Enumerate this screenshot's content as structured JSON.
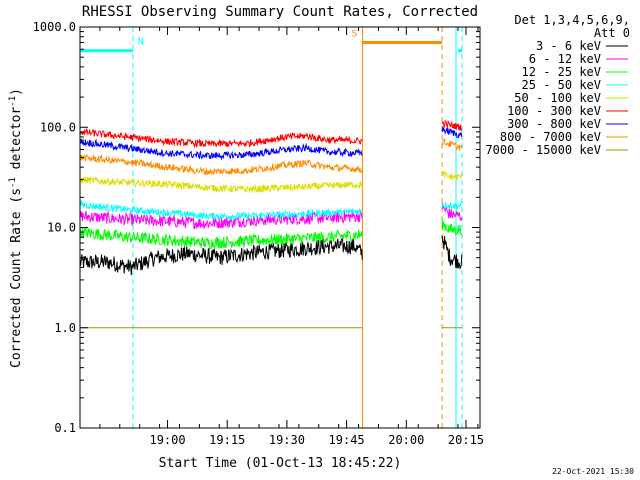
{
  "chart_data": {
    "type": "line",
    "title": "RHESSI Observing Summary Count Rates, Corrected",
    "xlabel": "Start Time (01-Oct-13 18:45:22)",
    "ylabel_main": "Corrected Count Rate (s",
    "ylabel_sup1": "-1",
    "ylabel_mid": " detector",
    "ylabel_sup2": "-1",
    "ylabel_end": ")",
    "y_scale": "log",
    "ylim": [
      0.1,
      1000
    ],
    "y_ticks": [
      "0.1",
      "1.0",
      "10.0",
      "100.0",
      "1000.0"
    ],
    "x_range_min": [
      -7,
      89
    ],
    "x_ticks": [
      {
        "label": "19:00",
        "min": 15
      },
      {
        "label": "19:15",
        "min": 30
      },
      {
        "label": "19:30",
        "min": 45
      },
      {
        "label": "19:45",
        "min": 60
      },
      {
        "label": "20:00",
        "min": 75
      },
      {
        "label": "20:15",
        "min": 90
      }
    ],
    "legend": {
      "header1": "Det 1,3,4,5,6,9,",
      "header2": "Att 0",
      "placement": "right"
    },
    "flags": [
      {
        "label": "N",
        "color": "#00ffff",
        "min_range": [
          -7,
          6.3
        ],
        "level": 580
      },
      {
        "label": "S",
        "color": "#ff8c00",
        "min_range": [
          64,
          84
        ],
        "level": 700
      },
      {
        "label": "",
        "color": "#00ffff",
        "min_range": [
          88,
          89
        ],
        "level": 580
      }
    ],
    "vlines": [
      {
        "min": -7,
        "color": "#00ffff",
        "style": "solid"
      },
      {
        "min": 6.3,
        "color": "#00ffff",
        "style": "dashed"
      },
      {
        "min": 64,
        "color": "#ff8c00",
        "style": "solid"
      },
      {
        "min": 84,
        "color": "#ff8c00",
        "style": "dashed"
      },
      {
        "min": 87.5,
        "color": "#00ffff",
        "style": "solid"
      },
      {
        "min": 89,
        "color": "#00ffff",
        "style": "dashed"
      }
    ],
    "segments": [
      [
        -7,
        64
      ],
      [
        84,
        89
      ]
    ],
    "series": [
      {
        "name": "3 - 6 keV",
        "color": "#000000",
        "pts1": [
          [
            -7,
            4.5
          ],
          [
            0,
            4.5
          ],
          [
            6,
            4.0
          ],
          [
            12,
            5.0
          ],
          [
            20,
            5.5
          ],
          [
            28,
            5.0
          ],
          [
            35,
            5.5
          ],
          [
            45,
            6.0
          ],
          [
            55,
            6.5
          ],
          [
            62,
            6.5
          ],
          [
            64,
            5.5
          ]
        ],
        "pts2": [
          [
            84,
            8.0
          ],
          [
            86,
            5.0
          ],
          [
            89,
            4.5
          ]
        ]
      },
      {
        "name": "6 - 12 keV",
        "color": "#ff00ff",
        "pts1": [
          [
            -7,
            13
          ],
          [
            5,
            12
          ],
          [
            15,
            11.5
          ],
          [
            25,
            11
          ],
          [
            40,
            12
          ],
          [
            55,
            12.5
          ],
          [
            64,
            13
          ]
        ],
        "pts2": [
          [
            84,
            16
          ],
          [
            86,
            13.5
          ],
          [
            89,
            13
          ]
        ]
      },
      {
        "name": "12 - 25 keV",
        "color": "#00ff00",
        "pts1": [
          [
            -7,
            9
          ],
          [
            5,
            8
          ],
          [
            15,
            7.5
          ],
          [
            25,
            7
          ],
          [
            40,
            7.5
          ],
          [
            55,
            8
          ],
          [
            64,
            8.5
          ]
        ],
        "pts2": [
          [
            84,
            11
          ],
          [
            86,
            9.5
          ],
          [
            89,
            9.5
          ]
        ]
      },
      {
        "name": "25 - 50 keV",
        "color": "#00ffff",
        "pts1": [
          [
            -7,
            17
          ],
          [
            5,
            15
          ],
          [
            15,
            14
          ],
          [
            25,
            13
          ],
          [
            35,
            13
          ],
          [
            45,
            13.5
          ],
          [
            55,
            14
          ],
          [
            64,
            14.5
          ]
        ],
        "pts2": [
          [
            84,
            17
          ],
          [
            86,
            16.5
          ],
          [
            89,
            16.5
          ]
        ]
      },
      {
        "name": "50 - 100 keV",
        "color": "#dddd00",
        "pts1": [
          [
            -7,
            30
          ],
          [
            5,
            28
          ],
          [
            15,
            27
          ],
          [
            25,
            25
          ],
          [
            35,
            24
          ],
          [
            45,
            25
          ],
          [
            55,
            26
          ],
          [
            64,
            27
          ]
        ],
        "pts2": [
          [
            84,
            34
          ],
          [
            86,
            32
          ],
          [
            89,
            32
          ]
        ]
      },
      {
        "name": "100 - 300 keV",
        "color": "#ff0000",
        "pts1": [
          [
            -7,
            90
          ],
          [
            5,
            80
          ],
          [
            15,
            72
          ],
          [
            25,
            68
          ],
          [
            35,
            69
          ],
          [
            45,
            80
          ],
          [
            50,
            82
          ],
          [
            55,
            75
          ],
          [
            64,
            73
          ]
        ],
        "pts2": [
          [
            84,
            110
          ],
          [
            86,
            105
          ],
          [
            89,
            100
          ]
        ]
      },
      {
        "name": "300 - 800 keV",
        "color": "#0000ff",
        "pts1": [
          [
            -7,
            72
          ],
          [
            5,
            62
          ],
          [
            15,
            55
          ],
          [
            25,
            52
          ],
          [
            35,
            53
          ],
          [
            45,
            60
          ],
          [
            50,
            62
          ],
          [
            55,
            57
          ],
          [
            64,
            55
          ]
        ],
        "pts2": [
          [
            84,
            95
          ],
          [
            86,
            90
          ],
          [
            89,
            82
          ]
        ]
      },
      {
        "name": "800 - 7000 keV",
        "color": "#ff8c00",
        "pts1": [
          [
            -7,
            50
          ],
          [
            5,
            45
          ],
          [
            15,
            40
          ],
          [
            25,
            36
          ],
          [
            35,
            37
          ],
          [
            45,
            42
          ],
          [
            50,
            44
          ],
          [
            55,
            40
          ],
          [
            64,
            38
          ]
        ],
        "pts2": [
          [
            84,
            72
          ],
          [
            86,
            68
          ],
          [
            89,
            62
          ]
        ]
      },
      {
        "name": "7000 - 15000 keV",
        "color": "#999900",
        "pts1": [
          [
            -7,
            1.0
          ],
          [
            64,
            1.0
          ]
        ],
        "pts2": [
          [
            84,
            1.0
          ],
          [
            89,
            1.0
          ]
        ]
      }
    ],
    "timestamp": "22-Oct-2021 15:30"
  }
}
